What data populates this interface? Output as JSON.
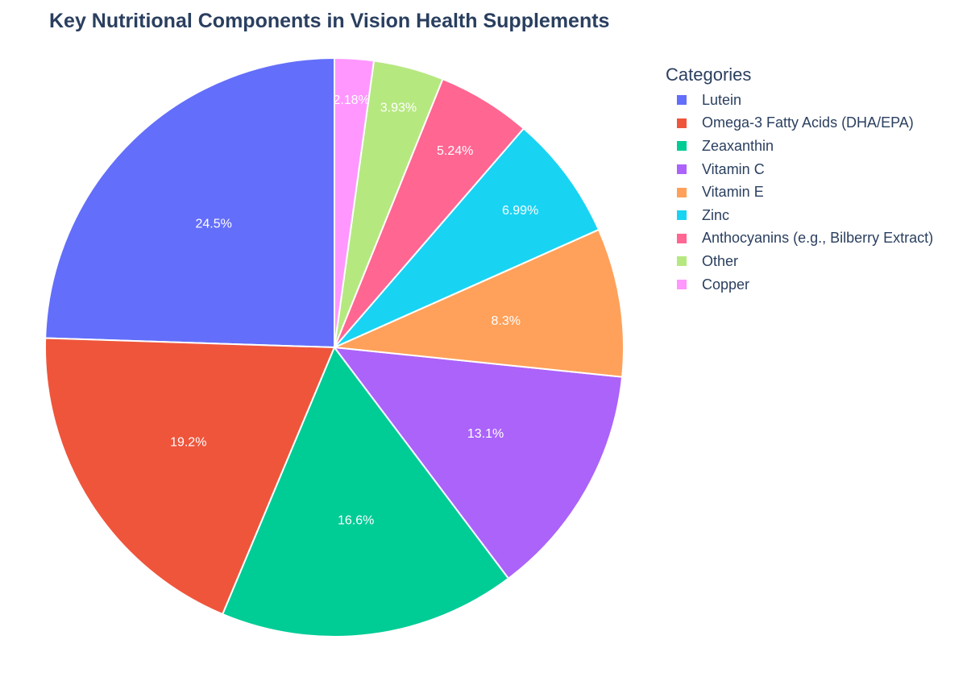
{
  "chart_data": {
    "type": "pie",
    "title": "Key Nutritional Components in Vision Health Supplements",
    "legend_title": "Categories",
    "legend_position": "right",
    "labels": [
      "Lutein",
      "Omega-3 Fatty Acids (DHA/EPA)",
      "Zeaxanthin",
      "Vitamin C",
      "Vitamin E",
      "Zinc",
      "Anthocyanins (e.g., Bilberry Extract)",
      "Other",
      "Copper"
    ],
    "values": [
      24.5,
      19.2,
      16.6,
      13.1,
      8.3,
      6.99,
      5.24,
      3.93,
      2.18
    ],
    "value_labels": [
      "24.5%",
      "19.2%",
      "16.6%",
      "13.1%",
      "8.3%",
      "6.99%",
      "5.24%",
      "3.93%",
      "2.18%"
    ],
    "colors": [
      "#636efa",
      "#ef553b",
      "#00cc96",
      "#ab63fa",
      "#ffa15a",
      "#19d3f3",
      "#ff6692",
      "#b6e880",
      "#ff97ff"
    ],
    "direction": "counterclockwise",
    "sort": "descending"
  }
}
